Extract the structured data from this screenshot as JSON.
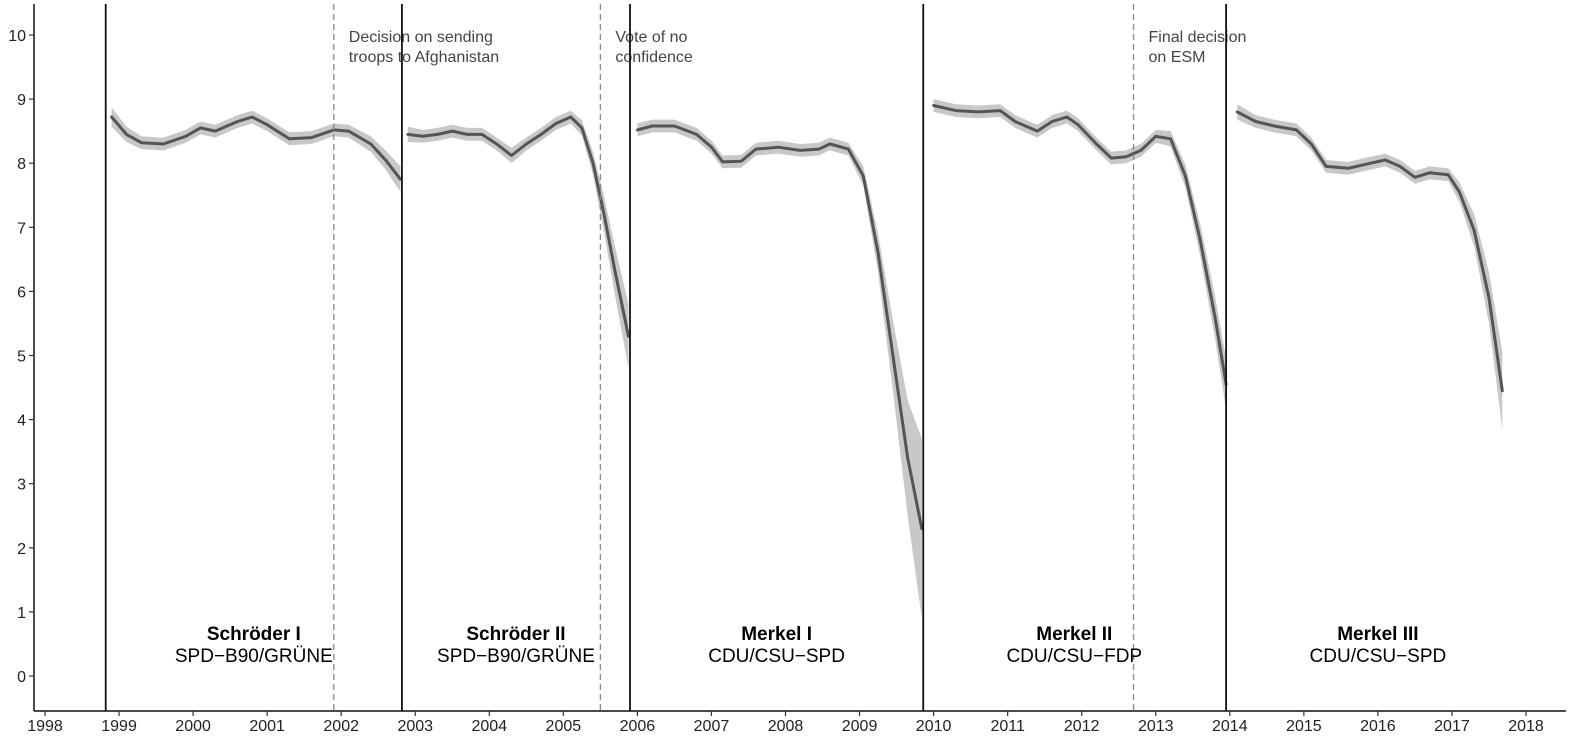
{
  "chart_data": {
    "type": "line",
    "title": "",
    "xlabel": "",
    "ylabel": "",
    "ylim": [
      0,
      10
    ],
    "xlim": [
      1997.9,
      2018.6
    ],
    "y_ticks": [
      0,
      1,
      2,
      3,
      4,
      5,
      6,
      7,
      8,
      9,
      10
    ],
    "x_ticks": [
      1998,
      1999,
      2000,
      2001,
      2002,
      2003,
      2004,
      2005,
      2006,
      2007,
      2008,
      2009,
      2010,
      2011,
      2012,
      2013,
      2014,
      2015,
      2016,
      2017,
      2018
    ],
    "grid": false,
    "line_color": "#555555",
    "ribbon_color": "#c8c8c8",
    "government_boundaries": [
      1998.82,
      2002.82,
      2005.9,
      2009.86,
      2013.95
    ],
    "events": [
      {
        "x": 2001.9,
        "label_lines": [
          "Decision on sending",
          "troops to Afghanistan"
        ]
      },
      {
        "x": 2005.5,
        "label_lines": [
          "Vote of no",
          "confidence"
        ]
      },
      {
        "x": 2012.7,
        "label_lines": [
          "Final decision",
          "on ESM"
        ]
      }
    ],
    "governments": [
      {
        "name": "Schröder I",
        "coalition": "SPD−B90/GRÜNE",
        "x_center": 2000.82
      },
      {
        "name": "Schröder II",
        "coalition": "SPD−B90/GRÜNE",
        "x_center": 2004.36
      },
      {
        "name": "Merkel I",
        "coalition": "CDU/CSU−SPD",
        "x_center": 2007.88
      },
      {
        "name": "Merkel II",
        "coalition": "CDU/CSU−FDP",
        "x_center": 2011.9
      },
      {
        "name": "Merkel III",
        "coalition": "CDU/CSU−SPD",
        "x_center": 2016.0
      }
    ],
    "series": [
      {
        "segment": 1,
        "points": [
          [
            1998.9,
            8.72
          ],
          [
            1999.1,
            8.45
          ],
          [
            1999.3,
            8.32
          ],
          [
            1999.6,
            8.3
          ],
          [
            1999.9,
            8.42
          ],
          [
            2000.1,
            8.55
          ],
          [
            2000.3,
            8.5
          ],
          [
            2000.6,
            8.65
          ],
          [
            2000.8,
            8.72
          ],
          [
            2001.0,
            8.6
          ],
          [
            2001.3,
            8.38
          ],
          [
            2001.6,
            8.4
          ],
          [
            2001.9,
            8.52
          ],
          [
            2002.1,
            8.5
          ],
          [
            2002.4,
            8.3
          ],
          [
            2002.6,
            8.05
          ],
          [
            2002.8,
            7.75
          ]
        ],
        "band_half_width": [
          0.15,
          0.12,
          0.1,
          0.1,
          0.1,
          0.1,
          0.1,
          0.1,
          0.1,
          0.1,
          0.1,
          0.1,
          0.1,
          0.1,
          0.12,
          0.15,
          0.2
        ]
      },
      {
        "segment": 2,
        "points": [
          [
            2002.9,
            8.45
          ],
          [
            2003.1,
            8.42
          ],
          [
            2003.3,
            8.45
          ],
          [
            2003.5,
            8.5
          ],
          [
            2003.7,
            8.45
          ],
          [
            2003.9,
            8.45
          ],
          [
            2004.1,
            8.3
          ],
          [
            2004.3,
            8.12
          ],
          [
            2004.5,
            8.3
          ],
          [
            2004.7,
            8.45
          ],
          [
            2004.9,
            8.62
          ],
          [
            2005.1,
            8.72
          ],
          [
            2005.25,
            8.55
          ],
          [
            2005.4,
            8.0
          ],
          [
            2005.55,
            7.2
          ],
          [
            2005.7,
            6.3
          ],
          [
            2005.88,
            5.3
          ]
        ],
        "band_half_width": [
          0.12,
          0.1,
          0.1,
          0.1,
          0.1,
          0.1,
          0.1,
          0.12,
          0.1,
          0.1,
          0.1,
          0.1,
          0.12,
          0.18,
          0.28,
          0.38,
          0.5
        ]
      },
      {
        "segment": 3,
        "points": [
          [
            2006.0,
            8.52
          ],
          [
            2006.2,
            8.58
          ],
          [
            2006.5,
            8.58
          ],
          [
            2006.8,
            8.45
          ],
          [
            2007.0,
            8.25
          ],
          [
            2007.15,
            8.02
          ],
          [
            2007.4,
            8.03
          ],
          [
            2007.6,
            8.22
          ],
          [
            2007.9,
            8.25
          ],
          [
            2008.2,
            8.2
          ],
          [
            2008.45,
            8.22
          ],
          [
            2008.6,
            8.3
          ],
          [
            2008.85,
            8.22
          ],
          [
            2009.05,
            7.8
          ],
          [
            2009.25,
            6.6
          ],
          [
            2009.45,
            5.0
          ],
          [
            2009.65,
            3.4
          ],
          [
            2009.84,
            2.3
          ]
        ],
        "band_half_width": [
          0.1,
          0.1,
          0.1,
          0.1,
          0.1,
          0.1,
          0.1,
          0.1,
          0.1,
          0.1,
          0.1,
          0.1,
          0.1,
          0.15,
          0.3,
          0.55,
          0.9,
          1.4
        ]
      },
      {
        "segment": 4,
        "points": [
          [
            2010.0,
            8.9
          ],
          [
            2010.3,
            8.82
          ],
          [
            2010.6,
            8.8
          ],
          [
            2010.9,
            8.82
          ],
          [
            2011.1,
            8.65
          ],
          [
            2011.4,
            8.5
          ],
          [
            2011.6,
            8.65
          ],
          [
            2011.8,
            8.72
          ],
          [
            2011.95,
            8.6
          ],
          [
            2012.2,
            8.3
          ],
          [
            2012.4,
            8.08
          ],
          [
            2012.6,
            8.1
          ],
          [
            2012.8,
            8.2
          ],
          [
            2013.0,
            8.42
          ],
          [
            2013.2,
            8.38
          ],
          [
            2013.4,
            7.8
          ],
          [
            2013.6,
            6.8
          ],
          [
            2013.8,
            5.6
          ],
          [
            2013.95,
            4.55
          ]
        ],
        "band_half_width": [
          0.1,
          0.1,
          0.1,
          0.1,
          0.1,
          0.1,
          0.1,
          0.1,
          0.1,
          0.1,
          0.1,
          0.1,
          0.1,
          0.1,
          0.12,
          0.18,
          0.25,
          0.33,
          0.4
        ]
      },
      {
        "segment": 5,
        "points": [
          [
            2014.1,
            8.8
          ],
          [
            2014.35,
            8.65
          ],
          [
            2014.6,
            8.58
          ],
          [
            2014.9,
            8.52
          ],
          [
            2015.1,
            8.3
          ],
          [
            2015.3,
            7.95
          ],
          [
            2015.6,
            7.92
          ],
          [
            2015.9,
            8.0
          ],
          [
            2016.1,
            8.05
          ],
          [
            2016.3,
            7.95
          ],
          [
            2016.5,
            7.78
          ],
          [
            2016.7,
            7.85
          ],
          [
            2016.95,
            7.82
          ],
          [
            2017.1,
            7.55
          ],
          [
            2017.3,
            6.95
          ],
          [
            2017.5,
            5.9
          ],
          [
            2017.68,
            4.45
          ]
        ],
        "band_half_width": [
          0.12,
          0.1,
          0.1,
          0.1,
          0.1,
          0.1,
          0.1,
          0.1,
          0.1,
          0.1,
          0.1,
          0.1,
          0.1,
          0.15,
          0.25,
          0.4,
          0.6
        ]
      }
    ]
  }
}
